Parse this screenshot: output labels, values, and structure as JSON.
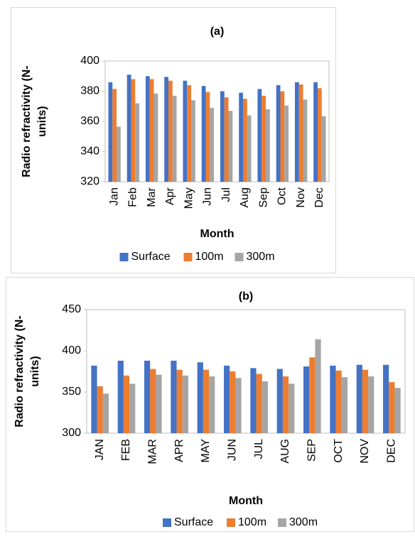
{
  "chart_data": [
    {
      "type": "bar",
      "title": "(a)",
      "ylabel": [
        "Radio refractivity (N-",
        "units)"
      ],
      "xlabel": "Month",
      "categories": [
        "Jan",
        "Feb",
        "Mar",
        "Apr",
        "May",
        "Jun",
        "Jul",
        "Aug",
        "Sep",
        "Oct",
        "Nov",
        "Dec"
      ],
      "series": [
        {
          "name": "Surface",
          "color": "#4472c4",
          "values": [
            386,
            391,
            390,
            389.5,
            387,
            383.5,
            380,
            379,
            381.5,
            384,
            386,
            386
          ]
        },
        {
          "name": "100m",
          "color": "#ed7d31",
          "values": [
            381.5,
            388,
            388,
            387,
            384,
            379.5,
            376,
            375,
            377,
            380,
            384.5,
            382
          ]
        },
        {
          "name": "300m",
          "color": "#a5a5a5",
          "values": [
            356.5,
            372,
            378.5,
            377,
            374,
            369,
            367,
            364,
            368,
            370.5,
            374.5,
            363.5
          ]
        }
      ],
      "ylim": [
        320,
        400
      ],
      "yticks": [
        320,
        340,
        360,
        380,
        400
      ]
    },
    {
      "type": "bar",
      "title": "(b)",
      "ylabel": [
        "Radio refractivity (N-",
        "units)"
      ],
      "xlabel": "Month",
      "categories": [
        "JAN",
        "FEB",
        "MAR",
        "APR",
        "MAY",
        "JUN",
        "JUL",
        "AUG",
        "SEP",
        "OCT",
        "NOV",
        "DEC"
      ],
      "series": [
        {
          "name": "Surface",
          "color": "#4472c4",
          "values": [
            382,
            388,
            388,
            388,
            386,
            382,
            379,
            378,
            381,
            382,
            383,
            383
          ]
        },
        {
          "name": "100m",
          "color": "#ed7d31",
          "values": [
            357,
            370,
            378,
            377,
            377,
            375,
            372,
            369,
            392,
            376,
            377,
            362
          ]
        },
        {
          "name": "300m",
          "color": "#a5a5a5",
          "values": [
            348,
            360,
            371,
            370,
            369,
            367,
            363,
            360,
            414,
            368,
            369,
            355
          ]
        }
      ],
      "ylim": [
        300,
        450
      ],
      "yticks": [
        300,
        350,
        400,
        450
      ]
    }
  ]
}
